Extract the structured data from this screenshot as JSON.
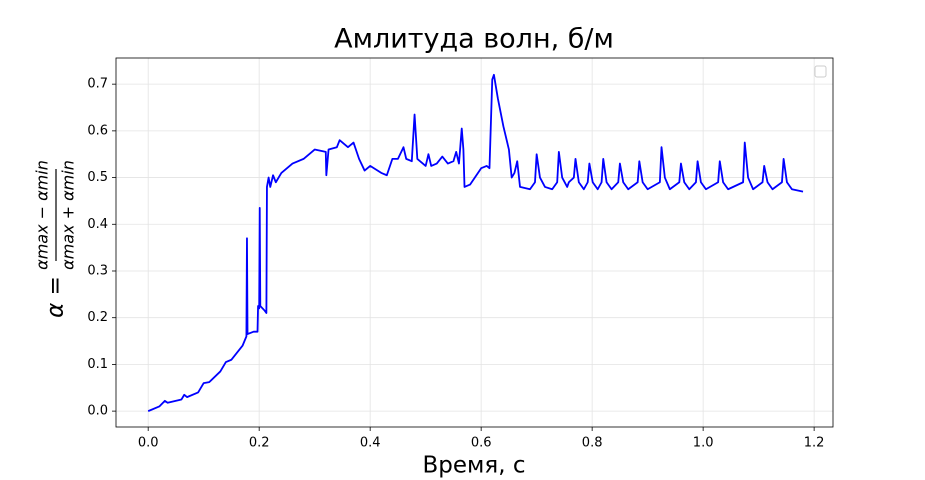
{
  "chart_data": {
    "type": "line",
    "title": "Амлитуда волн, б/м",
    "xlabel": "Время, с",
    "ylabel": {
      "lhs": "α =",
      "numerator": "αmax − αmin",
      "denominator": "αmax + αmin"
    },
    "color": "#0000ff",
    "grid": true,
    "legend": "upper right",
    "xlim": [
      -0.058,
      1.234
    ],
    "ylim": [
      -0.034,
      0.756
    ],
    "xticks": [
      {
        "value": 0,
        "label": "0.0"
      },
      0.2,
      0.4,
      0.6,
      0.8,
      {
        "value": 1,
        "label": "1.0"
      },
      1.2
    ],
    "yticks": [
      {
        "value": 0,
        "label": "0.0"
      },
      0.1,
      0.2,
      0.3,
      0.4,
      0.5,
      0.6,
      0.7
    ],
    "x": [
      0,
      0.02,
      0.03,
      0.035,
      0.06,
      0.065,
      0.07,
      0.09,
      0.1,
      0.11,
      0.13,
      0.14,
      0.15,
      0.17,
      0.177,
      0.178,
      0.179,
      0.19,
      0.197,
      0.198,
      0.2,
      0.201,
      0.202,
      0.21,
      0.213,
      0.214,
      0.217,
      0.22,
      0.225,
      0.23,
      0.24,
      0.26,
      0.28,
      0.3,
      0.32,
      0.321,
      0.325,
      0.34,
      0.345,
      0.36,
      0.37,
      0.38,
      0.39,
      0.4,
      0.42,
      0.43,
      0.44,
      0.45,
      0.46,
      0.465,
      0.475,
      0.48,
      0.485,
      0.5,
      0.505,
      0.51,
      0.52,
      0.53,
      0.54,
      0.55,
      0.555,
      0.56,
      0.565,
      0.568,
      0.57,
      0.58,
      0.6,
      0.61,
      0.615,
      0.62,
      0.623,
      0.63,
      0.64,
      0.65,
      0.655,
      0.66,
      0.665,
      0.67,
      0.688,
      0.697,
      0.7,
      0.706,
      0.715,
      0.728,
      0.737,
      0.74,
      0.746,
      0.755,
      0.758,
      0.767,
      0.77,
      0.776,
      0.785,
      0.792,
      0.795,
      0.801,
      0.81,
      0.817,
      0.82,
      0.826,
      0.835,
      0.847,
      0.85,
      0.856,
      0.865,
      0.882,
      0.885,
      0.891,
      0.9,
      0.922,
      0.925,
      0.931,
      0.94,
      0.957,
      0.96,
      0.966,
      0.975,
      0.987,
      0.99,
      0.996,
      1.005,
      1.027,
      1.03,
      1.036,
      1.045,
      1.072,
      1.075,
      1.081,
      1.09,
      1.107,
      1.11,
      1.116,
      1.125,
      1.142,
      1.145,
      1.151,
      1.16,
      1.18
    ],
    "values": [
      0,
      0.01,
      0.022,
      0.018,
      0.025,
      0.035,
      0.03,
      0.04,
      0.06,
      0.062,
      0.085,
      0.105,
      0.11,
      0.14,
      0.16,
      0.37,
      0.165,
      0.17,
      0.17,
      0.225,
      0.22,
      0.435,
      0.225,
      0.215,
      0.21,
      0.48,
      0.5,
      0.48,
      0.505,
      0.49,
      0.51,
      0.53,
      0.54,
      0.56,
      0.555,
      0.505,
      0.56,
      0.565,
      0.58,
      0.565,
      0.575,
      0.54,
      0.515,
      0.525,
      0.51,
      0.505,
      0.54,
      0.54,
      0.565,
      0.54,
      0.535,
      0.635,
      0.54,
      0.525,
      0.55,
      0.525,
      0.53,
      0.545,
      0.53,
      0.535,
      0.555,
      0.53,
      0.605,
      0.56,
      0.48,
      0.485,
      0.52,
      0.525,
      0.52,
      0.71,
      0.72,
      0.67,
      0.61,
      0.56,
      0.5,
      0.51,
      0.535,
      0.48,
      0.475,
      0.49,
      0.55,
      0.5,
      0.48,
      0.475,
      0.49,
      0.555,
      0.5,
      0.48,
      0.49,
      0.5,
      0.54,
      0.49,
      0.475,
      0.49,
      0.53,
      0.49,
      0.475,
      0.49,
      0.54,
      0.49,
      0.475,
      0.49,
      0.53,
      0.49,
      0.475,
      0.49,
      0.535,
      0.49,
      0.475,
      0.49,
      0.565,
      0.5,
      0.475,
      0.49,
      0.53,
      0.49,
      0.475,
      0.49,
      0.535,
      0.49,
      0.475,
      0.49,
      0.535,
      0.49,
      0.475,
      0.49,
      0.575,
      0.5,
      0.475,
      0.49,
      0.525,
      0.49,
      0.475,
      0.49,
      0.54,
      0.49,
      0.475,
      0.47
    ]
  }
}
